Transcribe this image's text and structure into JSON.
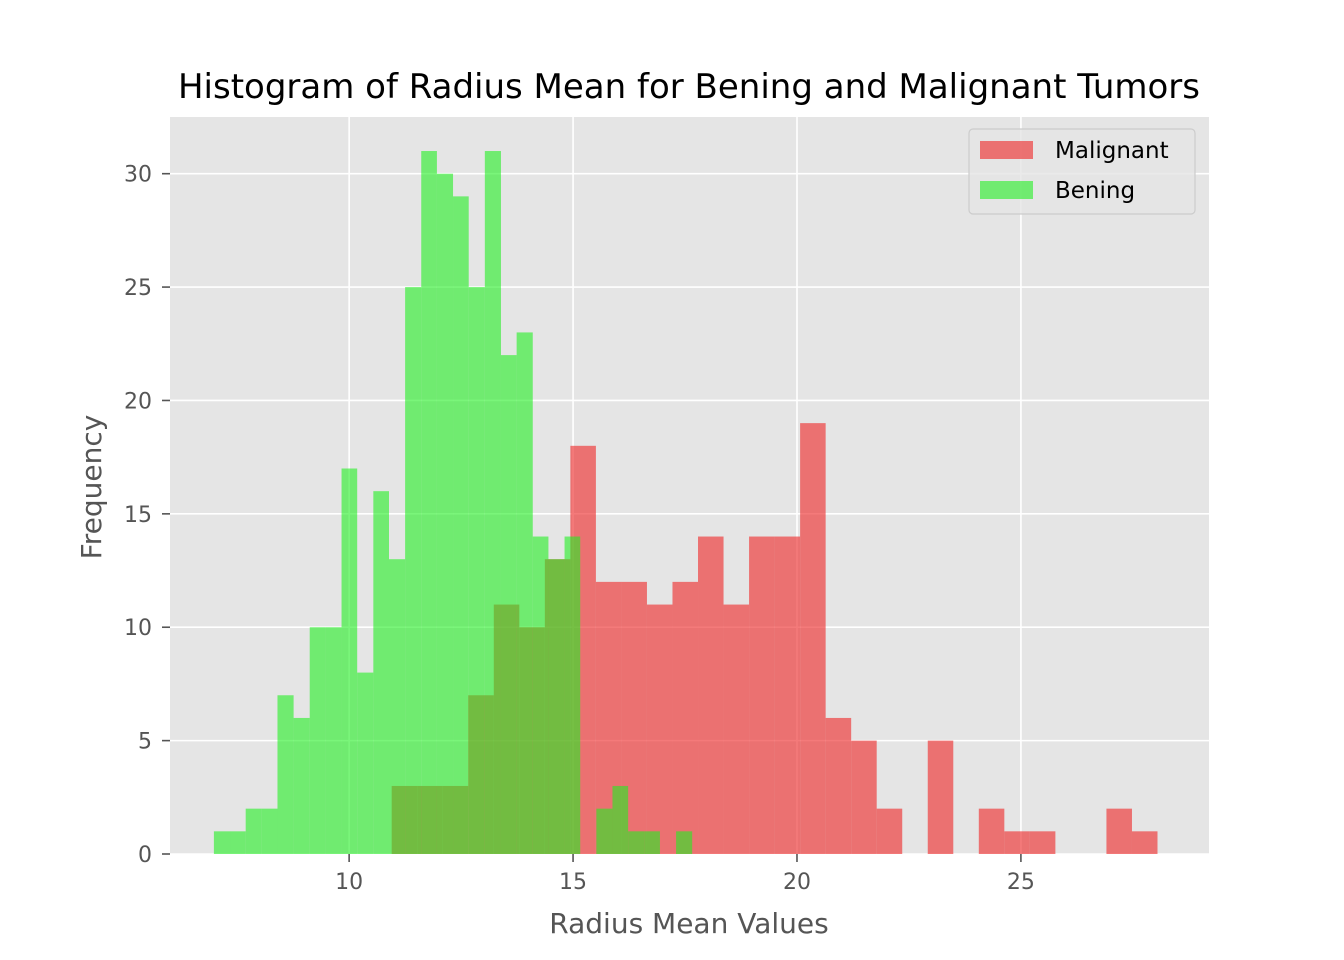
{
  "chart_data": {
    "type": "bar",
    "subtype": "overlapping-histogram",
    "title": "Histogram of Radius Mean for Bening and Malignant Tumors",
    "xlabel": "Radius Mean Values",
    "ylabel": "Frequency",
    "xlim": [
      6.0,
      29.2
    ],
    "ylim": [
      0,
      32.5
    ],
    "xticks": [
      10,
      15,
      20,
      25
    ],
    "yticks": [
      0,
      5,
      10,
      15,
      20,
      25,
      30
    ],
    "grid": true,
    "background": "#e5e5e5",
    "legend_position": "upper right",
    "series": [
      {
        "name": "Malignant",
        "color": "#ee3333",
        "opacity": 0.65,
        "bins": [
          {
            "x0": 10.95,
            "x1": 11.52,
            "count": 3
          },
          {
            "x0": 11.52,
            "x1": 12.09,
            "count": 3
          },
          {
            "x0": 12.09,
            "x1": 12.66,
            "count": 3
          },
          {
            "x0": 12.66,
            "x1": 13.23,
            "count": 7
          },
          {
            "x0": 13.23,
            "x1": 13.8,
            "count": 11
          },
          {
            "x0": 13.8,
            "x1": 14.37,
            "count": 10
          },
          {
            "x0": 14.37,
            "x1": 14.94,
            "count": 13
          },
          {
            "x0": 14.94,
            "x1": 15.51,
            "count": 18
          },
          {
            "x0": 15.51,
            "x1": 16.08,
            "count": 12
          },
          {
            "x0": 16.08,
            "x1": 16.65,
            "count": 12
          },
          {
            "x0": 16.65,
            "x1": 17.22,
            "count": 11
          },
          {
            "x0": 17.22,
            "x1": 17.79,
            "count": 12
          },
          {
            "x0": 17.79,
            "x1": 18.36,
            "count": 14
          },
          {
            "x0": 18.36,
            "x1": 18.93,
            "count": 11
          },
          {
            "x0": 18.93,
            "x1": 19.5,
            "count": 14
          },
          {
            "x0": 19.5,
            "x1": 20.07,
            "count": 14
          },
          {
            "x0": 20.07,
            "x1": 20.64,
            "count": 19
          },
          {
            "x0": 20.64,
            "x1": 21.21,
            "count": 6
          },
          {
            "x0": 21.21,
            "x1": 21.78,
            "count": 5
          },
          {
            "x0": 21.78,
            "x1": 22.35,
            "count": 2
          },
          {
            "x0": 22.35,
            "x1": 22.92,
            "count": 0
          },
          {
            "x0": 22.92,
            "x1": 23.49,
            "count": 5
          },
          {
            "x0": 23.49,
            "x1": 24.06,
            "count": 0
          },
          {
            "x0": 24.06,
            "x1": 24.63,
            "count": 2
          },
          {
            "x0": 24.63,
            "x1": 25.2,
            "count": 1
          },
          {
            "x0": 25.2,
            "x1": 25.77,
            "count": 1
          },
          {
            "x0": 25.77,
            "x1": 26.34,
            "count": 0
          },
          {
            "x0": 26.34,
            "x1": 26.91,
            "count": 0
          },
          {
            "x0": 26.91,
            "x1": 27.48,
            "count": 2
          },
          {
            "x0": 27.48,
            "x1": 28.05,
            "count": 1
          }
        ]
      },
      {
        "name": "Bening",
        "color": "#22ee22",
        "opacity": 0.6,
        "bins": [
          {
            "x0": 6.98,
            "x1": 7.34,
            "count": 1
          },
          {
            "x0": 7.34,
            "x1": 7.69,
            "count": 1
          },
          {
            "x0": 7.69,
            "x1": 8.05,
            "count": 2
          },
          {
            "x0": 8.05,
            "x1": 8.4,
            "count": 2
          },
          {
            "x0": 8.4,
            "x1": 8.76,
            "count": 7
          },
          {
            "x0": 8.76,
            "x1": 9.12,
            "count": 6
          },
          {
            "x0": 9.12,
            "x1": 9.47,
            "count": 10
          },
          {
            "x0": 9.47,
            "x1": 9.83,
            "count": 10
          },
          {
            "x0": 9.83,
            "x1": 10.18,
            "count": 17
          },
          {
            "x0": 10.18,
            "x1": 10.54,
            "count": 8
          },
          {
            "x0": 10.54,
            "x1": 10.89,
            "count": 16
          },
          {
            "x0": 10.89,
            "x1": 11.25,
            "count": 13
          },
          {
            "x0": 11.25,
            "x1": 11.61,
            "count": 25
          },
          {
            "x0": 11.61,
            "x1": 11.96,
            "count": 31
          },
          {
            "x0": 11.96,
            "x1": 12.32,
            "count": 30
          },
          {
            "x0": 12.32,
            "x1": 12.67,
            "count": 29
          },
          {
            "x0": 12.67,
            "x1": 13.03,
            "count": 25
          },
          {
            "x0": 13.03,
            "x1": 13.39,
            "count": 31
          },
          {
            "x0": 13.39,
            "x1": 13.74,
            "count": 22
          },
          {
            "x0": 13.74,
            "x1": 14.1,
            "count": 23
          },
          {
            "x0": 14.1,
            "x1": 14.45,
            "count": 14
          },
          {
            "x0": 14.45,
            "x1": 14.81,
            "count": 13
          },
          {
            "x0": 14.81,
            "x1": 15.16,
            "count": 14
          },
          {
            "x0": 15.16,
            "x1": 15.52,
            "count": 0
          },
          {
            "x0": 15.52,
            "x1": 15.88,
            "count": 2
          },
          {
            "x0": 15.88,
            "x1": 16.23,
            "count": 3
          },
          {
            "x0": 16.23,
            "x1": 16.59,
            "count": 1
          },
          {
            "x0": 16.59,
            "x1": 16.94,
            "count": 1
          },
          {
            "x0": 16.94,
            "x1": 17.3,
            "count": 0
          },
          {
            "x0": 17.3,
            "x1": 17.66,
            "count": 1
          }
        ]
      }
    ]
  }
}
